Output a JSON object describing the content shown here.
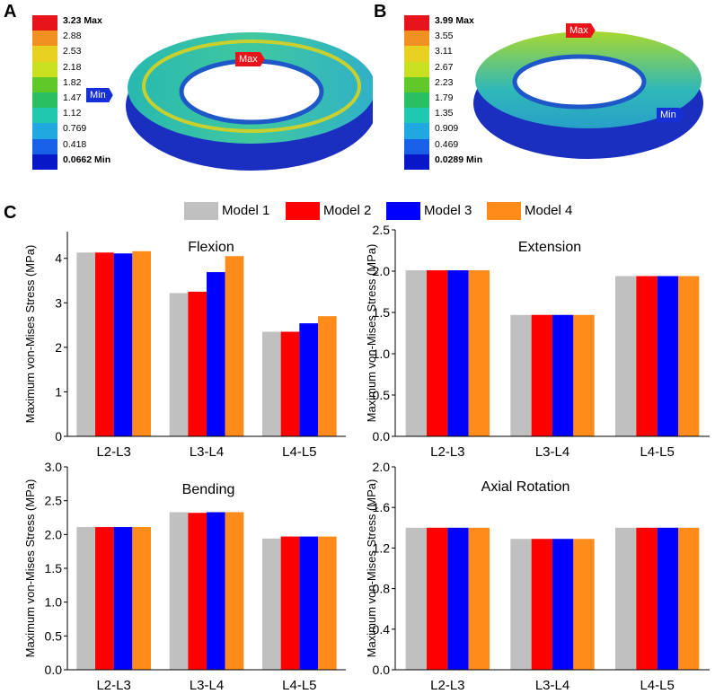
{
  "panels": {
    "a": "A",
    "b": "B",
    "c": "C"
  },
  "fea_a": {
    "legend": [
      "3.23 Max",
      "2.88",
      "2.53",
      "2.18",
      "1.82",
      "1.47",
      "1.12",
      "0.769",
      "0.418",
      "0.0662 Min"
    ],
    "colors": [
      "#e8141c",
      "#f09020",
      "#e8d020",
      "#c8e020",
      "#60c828",
      "#28c060",
      "#20c8b0",
      "#20a8e0",
      "#1860e8",
      "#0818c8"
    ],
    "max_tag": "Max",
    "min_tag": "Min"
  },
  "fea_b": {
    "legend": [
      "3.99 Max",
      "3.55",
      "3.11",
      "2.67",
      "2.23",
      "1.79",
      "1.35",
      "0.909",
      "0.469",
      "0.0289 Min"
    ],
    "colors": [
      "#e8141c",
      "#f09020",
      "#e8d020",
      "#c8e020",
      "#60c828",
      "#28c060",
      "#20c8b0",
      "#20a8e0",
      "#1860e8",
      "#0818c8"
    ],
    "max_tag": "Max",
    "min_tag": "Min"
  },
  "models": [
    {
      "name": "Model 1",
      "color": "#c0c0c0"
    },
    {
      "name": "Model 2",
      "color": "#ff0000"
    },
    {
      "name": "Model 3",
      "color": "#0000ff"
    },
    {
      "name": "Model 4",
      "color": "#ff8c1a"
    }
  ],
  "chart_data": [
    {
      "type": "bar",
      "title": "Flexion",
      "ylabel": "Maximum von-Mises Stress (MPa)",
      "categories": [
        "L2-L3",
        "L3-L4",
        "L4-L5"
      ],
      "ylim": [
        0,
        4.6
      ],
      "yticks": [
        "0",
        "1",
        "2",
        "3",
        "4"
      ],
      "ytick_values": [
        0,
        1,
        2,
        3,
        4
      ],
      "series": [
        {
          "name": "Model 1",
          "values": [
            4.13,
            3.22,
            2.35
          ]
        },
        {
          "name": "Model 2",
          "values": [
            4.13,
            3.25,
            2.35
          ]
        },
        {
          "name": "Model 3",
          "values": [
            4.11,
            3.69,
            2.54
          ]
        },
        {
          "name": "Model 4",
          "values": [
            4.16,
            4.05,
            2.7
          ]
        }
      ]
    },
    {
      "type": "bar",
      "title": "Extension",
      "ylabel": "Maximum von-Mises Stress (MPa)",
      "categories": [
        "L2-L3",
        "L3-L4",
        "L4-L5"
      ],
      "ylim": [
        0,
        2.5
      ],
      "yticks": [
        "0.0",
        "0.5",
        "1.0",
        "1.5",
        "2.0",
        "2.5"
      ],
      "ytick_values": [
        0,
        0.5,
        1.0,
        1.5,
        2.0,
        2.5
      ],
      "series": [
        {
          "name": "Model 1",
          "values": [
            2.01,
            1.47,
            1.94
          ]
        },
        {
          "name": "Model 2",
          "values": [
            2.01,
            1.47,
            1.94
          ]
        },
        {
          "name": "Model 3",
          "values": [
            2.01,
            1.47,
            1.94
          ]
        },
        {
          "name": "Model 4",
          "values": [
            2.01,
            1.47,
            1.94
          ]
        }
      ]
    },
    {
      "type": "bar",
      "title": "Bending",
      "ylabel": "Maximum von-Mises Stress (MPa)",
      "categories": [
        "L2-L3",
        "L3-L4",
        "L4-L5"
      ],
      "ylim": [
        0,
        3.0
      ],
      "yticks": [
        "0.0",
        "0.5",
        "1.0",
        "1.5",
        "2.0",
        "2.5",
        "3.0"
      ],
      "ytick_values": [
        0,
        0.5,
        1.0,
        1.5,
        2.0,
        2.5,
        3.0
      ],
      "series": [
        {
          "name": "Model 1",
          "values": [
            2.11,
            2.33,
            1.94
          ]
        },
        {
          "name": "Model 2",
          "values": [
            2.11,
            2.32,
            1.97
          ]
        },
        {
          "name": "Model 3",
          "values": [
            2.11,
            2.33,
            1.97
          ]
        },
        {
          "name": "Model 4",
          "values": [
            2.11,
            2.33,
            1.97
          ]
        }
      ]
    },
    {
      "type": "bar",
      "title": "Axial Rotation",
      "ylabel": "Maximum von-Mises Stress (MPa)",
      "categories": [
        "L2-L3",
        "L3-L4",
        "L4-L5"
      ],
      "ylim": [
        0,
        2.0
      ],
      "yticks": [
        "0.0",
        "0.4",
        "0.8",
        "1.2",
        "1.6",
        "2.0"
      ],
      "ytick_values": [
        0,
        0.4,
        0.8,
        1.2,
        1.6,
        2.0
      ],
      "series": [
        {
          "name": "Model 1",
          "values": [
            1.4,
            1.29,
            1.4
          ]
        },
        {
          "name": "Model 2",
          "values": [
            1.4,
            1.29,
            1.4
          ]
        },
        {
          "name": "Model 3",
          "values": [
            1.4,
            1.29,
            1.4
          ]
        },
        {
          "name": "Model 4",
          "values": [
            1.4,
            1.29,
            1.4
          ]
        }
      ]
    }
  ]
}
